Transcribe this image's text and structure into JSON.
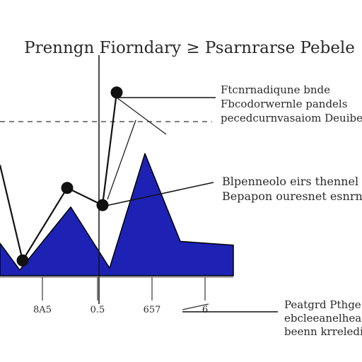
{
  "chart_data": {
    "type": "area",
    "title": "Prenngn Fiorndary ≥ Psarnrarse Pebele",
    "ylim": [
      0,
      100
    ],
    "x_tick_labels": [
      "8A5",
      "0.5",
      "657",
      "6"
    ],
    "area_series": {
      "x": [
        0,
        28,
        100,
        155,
        205,
        255,
        330
      ],
      "values": [
        17,
        3,
        36,
        4,
        64,
        18,
        16
      ]
    },
    "line_series": {
      "x": [
        0,
        32,
        95,
        145,
        165
      ],
      "values": [
        58,
        8,
        46,
        37,
        96
      ]
    },
    "annotations": [
      {
        "lines": [
          "Ftcnrnadiqune bnde",
          "Fbcodorwernle pandels",
          "pecedcurnvasaiom Deuibe ..."
        ]
      },
      {
        "lines": [
          "Blpenneolo eirs thennel",
          "Bepapon ouresnet esnrne"
        ]
      },
      {
        "lines": [
          "Peatgrd Pthge",
          "ebcleeanelheasne",
          "beenn krrelediupe"
        ]
      }
    ]
  }
}
